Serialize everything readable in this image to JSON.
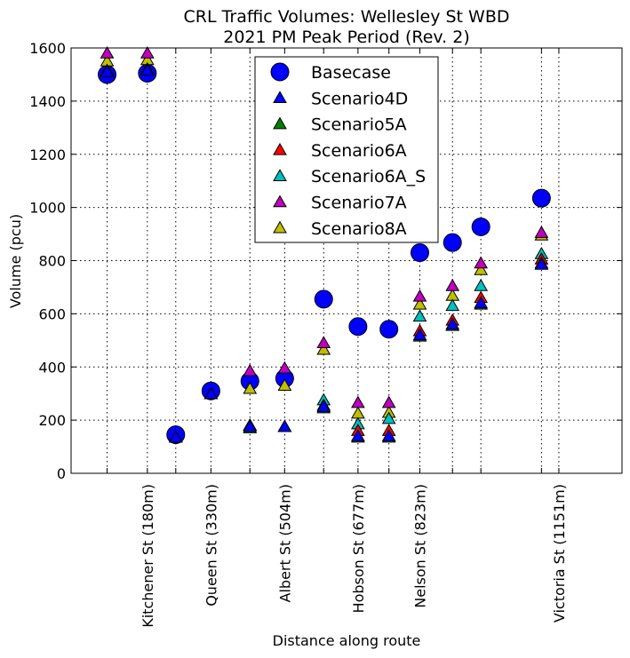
{
  "chart_data": {
    "type": "scatter",
    "title_lines": [
      "CRL Traffic Volumes: Wellesley St WBD",
      "2021 PM Peak Period (Rev. 2)"
    ],
    "xlabel": "Distance along route",
    "ylabel": "Volume (pcu)",
    "ylim": [
      0,
      1600
    ],
    "yticks": [
      0,
      200,
      400,
      600,
      800,
      1000,
      1200,
      1400,
      1600
    ],
    "xlim": [
      0,
      1300
    ],
    "grid": true,
    "legend_position": "top-center",
    "x_ticks": [
      {
        "x": 180,
        "label": "Kitchener St (180m)"
      },
      {
        "x": 330,
        "label": "Queen St (330m)"
      },
      {
        "x": 504,
        "label": "Albert St (504m)"
      },
      {
        "x": 677,
        "label": "Hobson St (677m)"
      },
      {
        "x": 823,
        "label": "Nelson St (823m)"
      },
      {
        "x": 1151,
        "label": "Victoria St (1151m)"
      }
    ],
    "vgrid_x": [
      85,
      180,
      247,
      330,
      422,
      504,
      596,
      677,
      750,
      823,
      900,
      967,
      1110,
      1151
    ],
    "x": [
      85,
      180,
      247,
      330,
      422,
      504,
      596,
      677,
      750,
      823,
      900,
      967,
      1110,
      1151
    ],
    "series": [
      {
        "name": "Basecase",
        "marker": "circle",
        "color": "#0000ff",
        "values": [
          1500,
          1505,
          145,
          310,
          347,
          357,
          655,
          552,
          542,
          830,
          868,
          927,
          1035,
          null
        ]
      },
      {
        "name": "Scenario4D",
        "marker": "triangle",
        "color": "#0000ff",
        "values": [
          1510,
          1515,
          135,
          298,
          175,
          175,
          250,
          140,
          140,
          520,
          560,
          640,
          785,
          null
        ]
      },
      {
        "name": "Scenario5A",
        "marker": "triangle",
        "color": "#008000",
        "values": [
          1510,
          1515,
          135,
          298,
          170,
          175,
          245,
          135,
          135,
          515,
          555,
          635,
          790,
          null
        ]
      },
      {
        "name": "Scenario6A",
        "marker": "triangle",
        "color": "#ff0000",
        "values": [
          1515,
          1520,
          135,
          298,
          180,
          175,
          255,
          160,
          160,
          535,
          575,
          660,
          805,
          null
        ]
      },
      {
        "name": "Scenario6A_S",
        "marker": "triangle",
        "color": "#00bfbf",
        "values": [
          1510,
          1520,
          135,
          298,
          180,
          175,
          275,
          185,
          205,
          590,
          630,
          705,
          825,
          null
        ]
      },
      {
        "name": "Scenario7A",
        "marker": "triangle",
        "color": "#bf00bf",
        "values": [
          1580,
          1580,
          135,
          298,
          385,
          395,
          490,
          265,
          265,
          665,
          705,
          790,
          905,
          null
        ]
      },
      {
        "name": "Scenario8A",
        "marker": "triangle",
        "color": "#bfbf00",
        "values": [
          1550,
          1555,
          135,
          298,
          318,
          330,
          465,
          225,
          228,
          635,
          668,
          765,
          895,
          null
        ]
      }
    ]
  }
}
